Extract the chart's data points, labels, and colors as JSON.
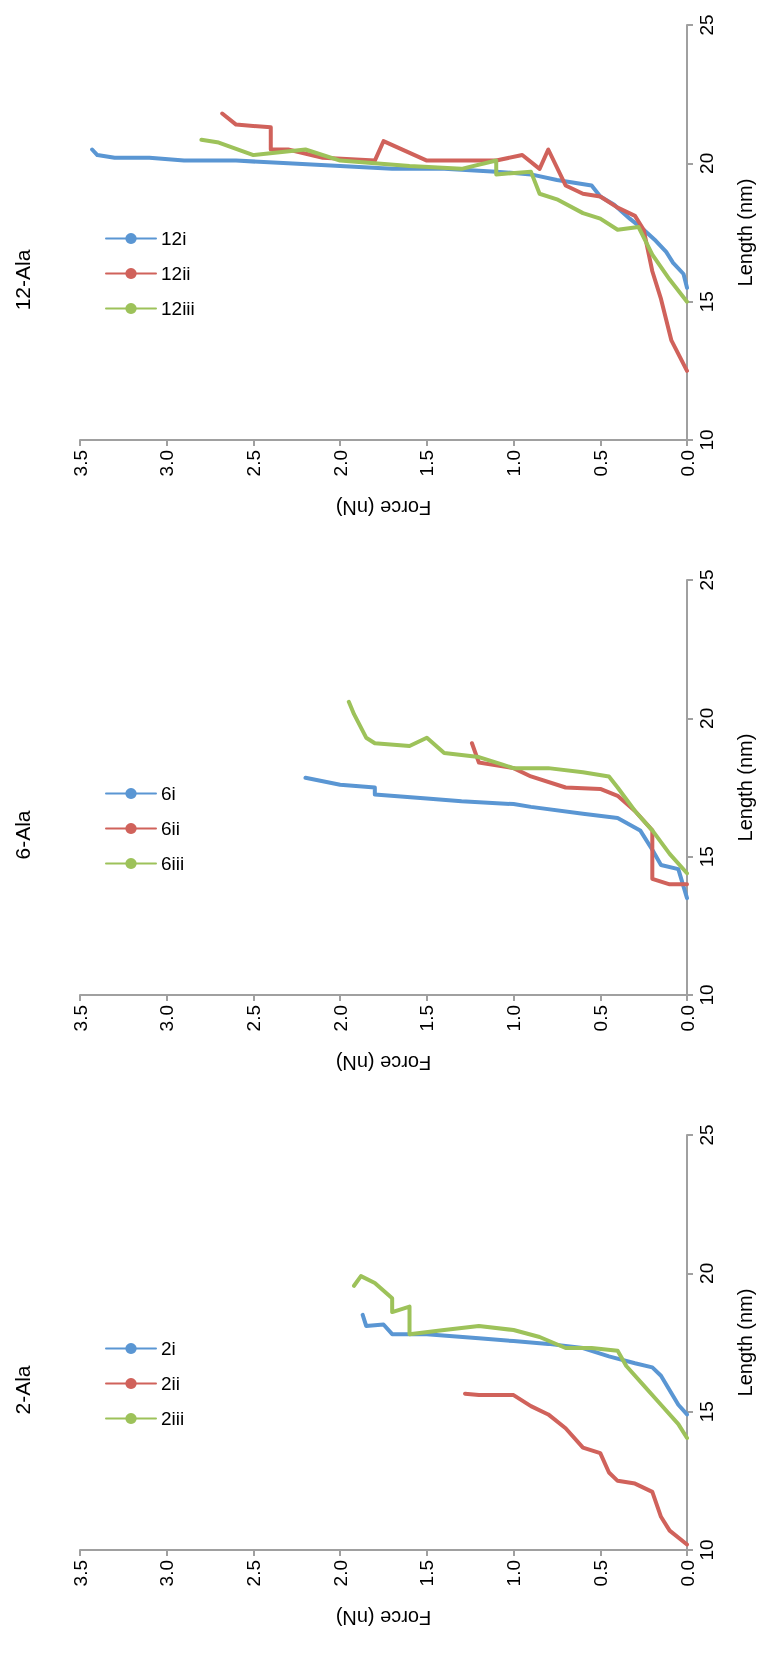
{
  "chart_data": [
    {
      "type": "line",
      "title": "12-Ala",
      "xlabel": "Force (nN)",
      "ylabel": "Length (nm)",
      "xlim": [
        3.5,
        0
      ],
      "xticks": [
        {
          "value": 3.5,
          "label": "3.5"
        },
        {
          "value": 3,
          "label": "3.0"
        },
        {
          "value": 2.5,
          "label": "2.5"
        },
        {
          "value": 2,
          "label": "2.0"
        },
        {
          "value": 1.5,
          "label": "1.5"
        },
        {
          "value": 1,
          "label": "1.0"
        },
        {
          "value": 0.5,
          "label": "0.5"
        },
        {
          "value": 0,
          "label": "0.0"
        }
      ],
      "ylim": [
        10,
        25
      ],
      "yticks": [
        10,
        15,
        20,
        25
      ],
      "grid": false,
      "legend": "left",
      "series": [
        {
          "name": "12i",
          "color": "#5a96d3",
          "values": [
            15.5,
            16.0,
            16.4,
            16.8,
            17.2,
            17.6,
            18.0,
            18.5,
            18.8,
            19.2,
            19.3,
            19.4,
            19.6,
            19.7,
            19.8,
            19.8,
            19.9,
            20.0,
            20.1,
            20.1,
            20.2,
            20.2,
            20.3,
            20.5
          ],
          "x": [
            0.0,
            0.02,
            0.08,
            0.12,
            0.18,
            0.25,
            0.33,
            0.42,
            0.5,
            0.55,
            0.65,
            0.75,
            0.9,
            1.1,
            1.4,
            1.7,
            2.0,
            2.3,
            2.6,
            2.9,
            3.1,
            3.3,
            3.4,
            3.43
          ]
        },
        {
          "name": "12ii",
          "color": "#d0625b",
          "values": [
            12.5,
            13.6,
            15.1,
            16.1,
            17.6,
            18.1,
            18.4,
            18.8,
            18.9,
            19.2,
            20.5,
            19.8,
            20.3,
            20.1,
            20.1,
            20.1,
            20.8,
            20.1,
            20.2,
            20.5,
            20.5,
            21.3,
            21.4,
            21.8
          ],
          "x": [
            0.0,
            0.09,
            0.15,
            0.2,
            0.25,
            0.3,
            0.4,
            0.5,
            0.6,
            0.7,
            0.8,
            0.85,
            0.95,
            1.1,
            1.3,
            1.5,
            1.75,
            1.8,
            2.1,
            2.3,
            2.4,
            2.4,
            2.6,
            2.68
          ]
        },
        {
          "name": "12iii",
          "color": "#9dc25a",
          "values": [
            15.0,
            15.8,
            16.7,
            17.7,
            17.6,
            18.0,
            18.2,
            18.7,
            18.9,
            19.7,
            19.6,
            20.1,
            19.8,
            19.9,
            20.1,
            20.5,
            20.3,
            20.75,
            20.85
          ],
          "x": [
            0.0,
            0.1,
            0.2,
            0.28,
            0.4,
            0.5,
            0.6,
            0.75,
            0.85,
            0.9,
            1.1,
            1.1,
            1.3,
            1.6,
            2.0,
            2.2,
            2.5,
            2.7,
            2.8
          ]
        }
      ]
    },
    {
      "type": "line",
      "title": "6-Ala",
      "xlabel": "Force (nN)",
      "ylabel": "Length (nm)",
      "xlim": [
        3.5,
        0
      ],
      "xticks": [
        {
          "value": 3.5,
          "label": "3.5"
        },
        {
          "value": 3,
          "label": "3.0"
        },
        {
          "value": 2.5,
          "label": "2.5"
        },
        {
          "value": 2,
          "label": "2.0"
        },
        {
          "value": 1.5,
          "label": "1.5"
        },
        {
          "value": 1,
          "label": "1.0"
        },
        {
          "value": 0.5,
          "label": "0.5"
        },
        {
          "value": 0,
          "label": "0.0"
        }
      ],
      "ylim": [
        10,
        25
      ],
      "yticks": [
        10,
        15,
        20,
        25
      ],
      "grid": false,
      "legend": "left",
      "series": [
        {
          "name": "6i",
          "color": "#5a96d3",
          "values": [
            13.5,
            14.55,
            14.7,
            15.25,
            15.95,
            16.4,
            16.55,
            16.8,
            16.9,
            17.0,
            17.1,
            17.25,
            17.5,
            17.6,
            17.85
          ],
          "x": [
            0.0,
            0.05,
            0.15,
            0.2,
            0.27,
            0.4,
            0.6,
            0.9,
            1.0,
            1.3,
            1.5,
            1.8,
            1.8,
            2.0,
            2.2
          ]
        },
        {
          "name": "6ii",
          "color": "#d0625b",
          "values": [
            14.0,
            14.0,
            14.2,
            15.95,
            16.65,
            17.2,
            17.45,
            17.5,
            17.9,
            18.2,
            18.3,
            18.4,
            19.1
          ],
          "x": [
            0.0,
            0.1,
            0.2,
            0.2,
            0.3,
            0.4,
            0.5,
            0.7,
            0.9,
            1.0,
            1.1,
            1.2,
            1.24
          ]
        },
        {
          "name": "6iii",
          "color": "#9dc25a",
          "values": [
            14.4,
            15.1,
            15.95,
            16.65,
            17.5,
            17.9,
            18.05,
            18.2,
            18.2,
            18.6,
            18.75,
            19.3,
            19.0,
            19.1,
            19.3,
            20.15,
            20.6
          ],
          "x": [
            0.0,
            0.1,
            0.2,
            0.3,
            0.4,
            0.45,
            0.6,
            0.8,
            1.0,
            1.2,
            1.4,
            1.5,
            1.6,
            1.8,
            1.85,
            1.92,
            1.95
          ]
        }
      ]
    },
    {
      "type": "line",
      "title": "2-Ala",
      "xlabel": "Force (nN)",
      "ylabel": "Length (nm)",
      "xlim": [
        3.5,
        0
      ],
      "xticks": [
        {
          "value": 3.5,
          "label": "3.5"
        },
        {
          "value": 3,
          "label": "3.0"
        },
        {
          "value": 2.5,
          "label": "2.5"
        },
        {
          "value": 2,
          "label": "2.0"
        },
        {
          "value": 1.5,
          "label": "1.5"
        },
        {
          "value": 1,
          "label": "1.0"
        },
        {
          "value": 0.5,
          "label": "0.5"
        },
        {
          "value": 0,
          "label": "0.0"
        }
      ],
      "ylim": [
        10,
        25
      ],
      "yticks": [
        10,
        15,
        20,
        25
      ],
      "grid": false,
      "legend": "left",
      "series": [
        {
          "name": "2i",
          "color": "#5a96d3",
          "values": [
            14.9,
            15.25,
            16.3,
            16.6,
            16.75,
            17.0,
            17.3,
            17.45,
            17.55,
            17.65,
            17.8,
            17.8,
            18.15,
            18.1,
            18.5
          ],
          "x": [
            0.0,
            0.05,
            0.15,
            0.2,
            0.3,
            0.45,
            0.6,
            0.8,
            1.0,
            1.2,
            1.5,
            1.7,
            1.75,
            1.85,
            1.87
          ]
        },
        {
          "name": "2ii",
          "color": "#d0625b",
          "values": [
            10.2,
            10.7,
            11.2,
            12.1,
            12.4,
            12.5,
            12.8,
            13.5,
            13.7,
            14.4,
            14.9,
            15.2,
            15.6,
            15.6,
            15.6,
            15.65
          ],
          "x": [
            0.0,
            0.1,
            0.15,
            0.2,
            0.3,
            0.4,
            0.45,
            0.5,
            0.6,
            0.7,
            0.8,
            0.9,
            1.0,
            1.1,
            1.2,
            1.28
          ]
        },
        {
          "name": "2iii",
          "color": "#9dc25a",
          "values": [
            14.05,
            14.55,
            15.25,
            15.95,
            16.65,
            17.2,
            17.3,
            17.3,
            17.7,
            17.95,
            18.1,
            17.95,
            17.8,
            18.8,
            18.6,
            19.1,
            19.65,
            19.9,
            19.55
          ],
          "x": [
            0.0,
            0.05,
            0.15,
            0.25,
            0.35,
            0.4,
            0.55,
            0.7,
            0.85,
            1.0,
            1.2,
            1.4,
            1.6,
            1.6,
            1.7,
            1.7,
            1.8,
            1.88,
            1.92
          ]
        }
      ]
    }
  ]
}
